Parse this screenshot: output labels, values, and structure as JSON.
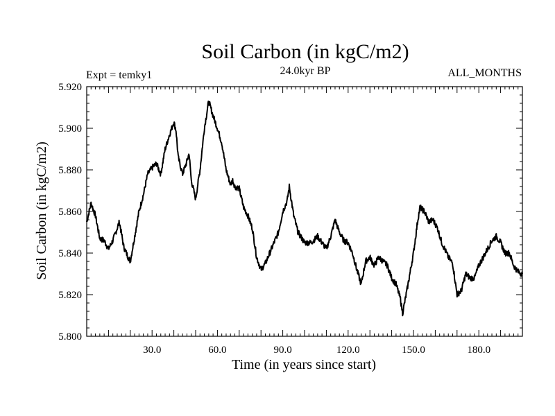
{
  "chart_data": {
    "type": "line",
    "title": "Soil Carbon (in kgC/m2)",
    "subtitle": "24.0kyr BP",
    "left_label": "Expt = temky1",
    "right_label": "ALL_MONTHS",
    "xlabel": "Time (in years since start)",
    "ylabel": "Soil Carbon (in kgC/m2)",
    "xlim": [
      0,
      200
    ],
    "ylim": [
      5.8,
      5.92
    ],
    "xticks": [
      30,
      60,
      90,
      120,
      150,
      180
    ],
    "xtick_labels": [
      "30.0",
      "60.0",
      "90.0",
      "120.0",
      "150.0",
      "180.0"
    ],
    "yticks": [
      5.8,
      5.82,
      5.84,
      5.86,
      5.88,
      5.9,
      5.92
    ],
    "ytick_labels": [
      "5.800",
      "5.820",
      "5.840",
      "5.860",
      "5.880",
      "5.900",
      "5.920"
    ],
    "grid": false,
    "series": [
      {
        "name": "Soil Carbon",
        "x": [
          0,
          2,
          4,
          6,
          8,
          10,
          12,
          14,
          15,
          17,
          19,
          20,
          22,
          24,
          26,
          28,
          30,
          32,
          34,
          36,
          38,
          40,
          41,
          42,
          44,
          46,
          47,
          48,
          50,
          52,
          54,
          56,
          58,
          60,
          62,
          64,
          66,
          67,
          68,
          70,
          72,
          74,
          76,
          78,
          80,
          82,
          84,
          86,
          88,
          90,
          92,
          93,
          95,
          97,
          100,
          103,
          106,
          108,
          110,
          112,
          114,
          116,
          118,
          120,
          122,
          124,
          126,
          128,
          130,
          132,
          134,
          136,
          138,
          140,
          142,
          144,
          145,
          147,
          150,
          152,
          153,
          155,
          157,
          159,
          161,
          163,
          166,
          168,
          170,
          172,
          174,
          176,
          178,
          180,
          182,
          184,
          186,
          188,
          190,
          192,
          194,
          196,
          198,
          200
        ],
        "values": [
          5.855,
          5.864,
          5.858,
          5.847,
          5.846,
          5.842,
          5.846,
          5.852,
          5.855,
          5.843,
          5.838,
          5.836,
          5.848,
          5.86,
          5.868,
          5.878,
          5.881,
          5.883,
          5.878,
          5.89,
          5.897,
          5.903,
          5.899,
          5.886,
          5.878,
          5.884,
          5.888,
          5.875,
          5.866,
          5.88,
          5.9,
          5.913,
          5.906,
          5.9,
          5.893,
          5.88,
          5.873,
          5.875,
          5.872,
          5.871,
          5.862,
          5.858,
          5.852,
          5.838,
          5.832,
          5.835,
          5.84,
          5.845,
          5.85,
          5.86,
          5.865,
          5.872,
          5.858,
          5.85,
          5.845,
          5.845,
          5.848,
          5.845,
          5.842,
          5.848,
          5.856,
          5.85,
          5.846,
          5.845,
          5.84,
          5.832,
          5.825,
          5.836,
          5.838,
          5.834,
          5.838,
          5.836,
          5.834,
          5.828,
          5.825,
          5.818,
          5.811,
          5.822,
          5.84,
          5.856,
          5.862,
          5.86,
          5.855,
          5.856,
          5.852,
          5.845,
          5.838,
          5.835,
          5.82,
          5.822,
          5.83,
          5.828,
          5.828,
          5.834,
          5.838,
          5.842,
          5.846,
          5.848,
          5.845,
          5.84,
          5.84,
          5.834,
          5.831,
          5.83
        ]
      }
    ]
  },
  "colors": {
    "line": "#000000",
    "axis": "#000000",
    "background": "#ffffff"
  }
}
